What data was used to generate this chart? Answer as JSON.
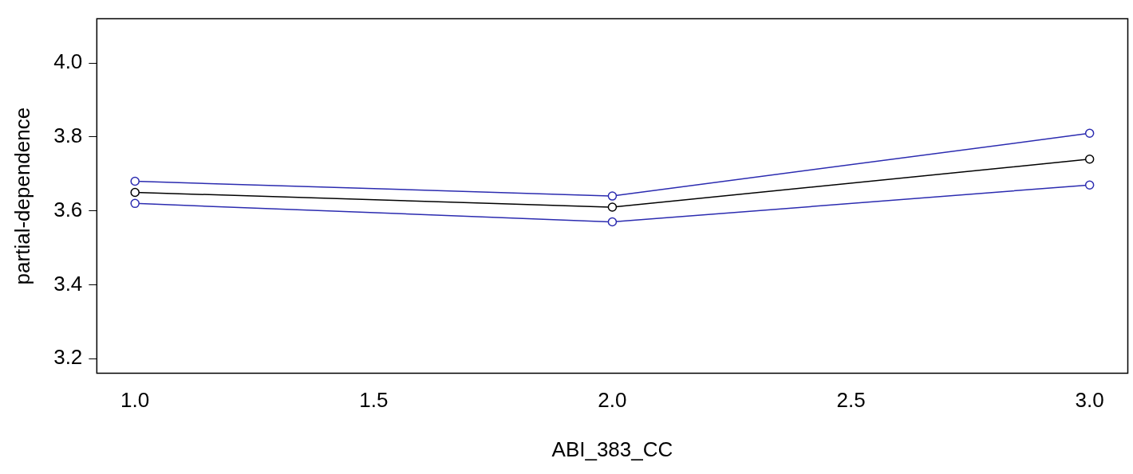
{
  "chart_data": {
    "type": "line",
    "xlabel": "ABI_383_CC",
    "ylabel": "partial-dependence",
    "x": [
      1,
      2,
      3
    ],
    "series": [
      {
        "color": "#2b2bb0",
        "values": [
          3.68,
          3.64,
          3.81
        ]
      },
      {
        "color": "#000000",
        "values": [
          3.65,
          3.61,
          3.74
        ]
      },
      {
        "color": "#2b2bb0",
        "values": [
          3.62,
          3.57,
          3.67
        ]
      }
    ],
    "xlim": [
      0.92,
      3.08
    ],
    "xticks": [
      {
        "value": 1,
        "label": "1.0"
      },
      {
        "value": 1.5,
        "label": "1.5"
      },
      {
        "value": 2,
        "label": "2.0"
      },
      {
        "value": 2.5,
        "label": "2.5"
      },
      {
        "value": 3,
        "label": "3.0"
      }
    ],
    "ylim": [
      3.16,
      4.12
    ],
    "yticks": [
      {
        "value": 3.2,
        "label": "3.2"
      },
      {
        "value": 3.4,
        "label": "3.4"
      },
      {
        "value": 3.6,
        "label": "3.6"
      },
      {
        "value": 3.8,
        "label": "3.8"
      },
      {
        "value": 4,
        "label": "4.0"
      }
    ],
    "grid": false,
    "legend": false,
    "marker": "circle",
    "line_style": "solid"
  }
}
